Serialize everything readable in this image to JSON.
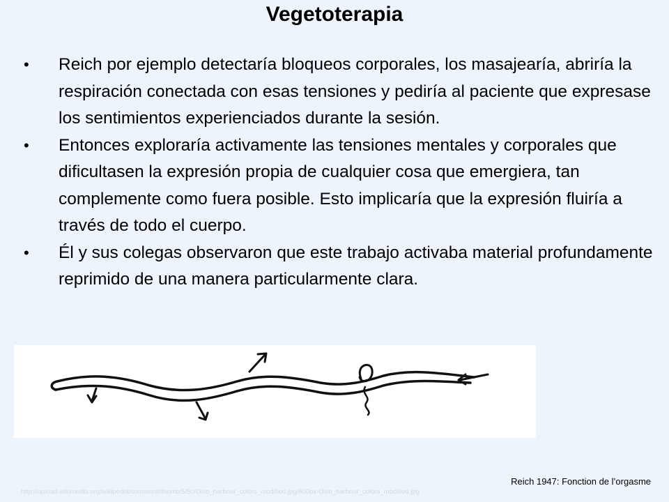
{
  "slide": {
    "title": "Vegetoterapia",
    "bullets": [
      "Reich por ejemplo detectaría bloqueos corporales, los masajearía, abriría la respiración conectada con esas tensiones y pediría al paciente que expresase los sentimientos experienciados durante la sesión.",
      "Entonces exploraría activamente las tensiones mentales y corporales que dificultasen la expresión propia de cualquier cosa que emergiera, tan complemente como fuera posible. Esto implicaría que la expresión fluiría a través de todo el cuerpo.",
      "Él y sus colegas observaron que este trabajo activaba material profundamente reprimido de una manera particularmente clara."
    ],
    "bullet_glyph": "•",
    "caption": "Reich 1947: Fonction de l’orgasme",
    "image_url": "http://upload.wikimedia.org/wikipedia/commons/thumb/5/5c/Oslo_harbour_colors_modified.jpg/800px-Oslo_harbour_colors_modified.jpg",
    "figure_icon": "worm-drawing-icon"
  }
}
